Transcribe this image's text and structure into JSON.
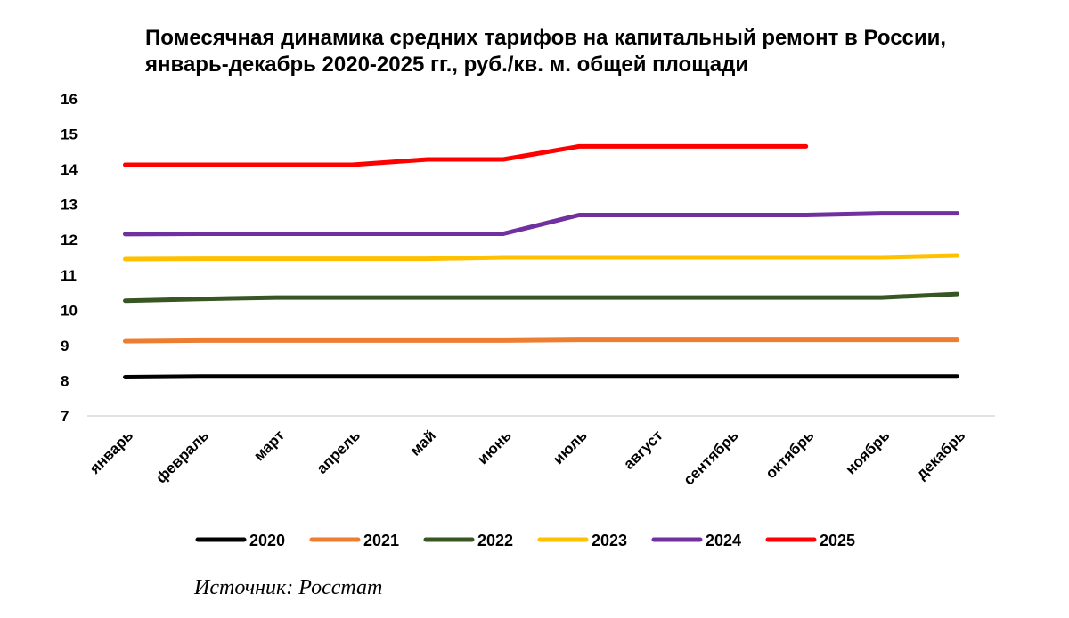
{
  "chart_data": {
    "type": "line",
    "title_lines": [
      "Помесячная динамика средних тарифов на капитальный ремонт в России,",
      "январь-декабрь 2020-2025 гг., руб./кв. м. общей площади"
    ],
    "categories": [
      "январь",
      "февраль",
      "март",
      "апрель",
      "май",
      "июнь",
      "июль",
      "август",
      "сентябрь",
      "октябрь",
      "ноябрь",
      "декабрь"
    ],
    "ylim": [
      7,
      16
    ],
    "yticks": [
      "7",
      "8",
      "9",
      "10",
      "11",
      "12",
      "13",
      "14",
      "15",
      "16"
    ],
    "grid": false,
    "legend_position": "bottom",
    "series": [
      {
        "name": "2020",
        "color": "#000000",
        "values": [
          8.1,
          8.12,
          8.12,
          8.12,
          8.12,
          8.12,
          8.12,
          8.12,
          8.12,
          8.12,
          8.12,
          8.12
        ]
      },
      {
        "name": "2021",
        "color": "#ED7D31",
        "values": [
          9.12,
          9.14,
          9.14,
          9.14,
          9.14,
          9.14,
          9.16,
          9.16,
          9.16,
          9.16,
          9.16,
          9.16
        ]
      },
      {
        "name": "2022",
        "color": "#375623",
        "values": [
          10.27,
          10.32,
          10.36,
          10.36,
          10.36,
          10.36,
          10.36,
          10.36,
          10.36,
          10.36,
          10.36,
          10.46
        ]
      },
      {
        "name": "2023",
        "color": "#FFC000",
        "values": [
          11.45,
          11.46,
          11.46,
          11.46,
          11.46,
          11.5,
          11.5,
          11.5,
          11.5,
          11.5,
          11.5,
          11.55
        ]
      },
      {
        "name": "2024",
        "color": "#7030A0",
        "values": [
          12.16,
          12.17,
          12.17,
          12.17,
          12.17,
          12.17,
          12.7,
          12.7,
          12.7,
          12.7,
          12.75,
          12.75
        ]
      },
      {
        "name": "2025",
        "color": "#FF0000",
        "values": [
          14.13,
          14.13,
          14.13,
          14.13,
          14.28,
          14.28,
          14.65,
          14.65,
          14.65,
          14.65,
          null,
          null
        ]
      }
    ],
    "source": "Источник: Росстат"
  }
}
